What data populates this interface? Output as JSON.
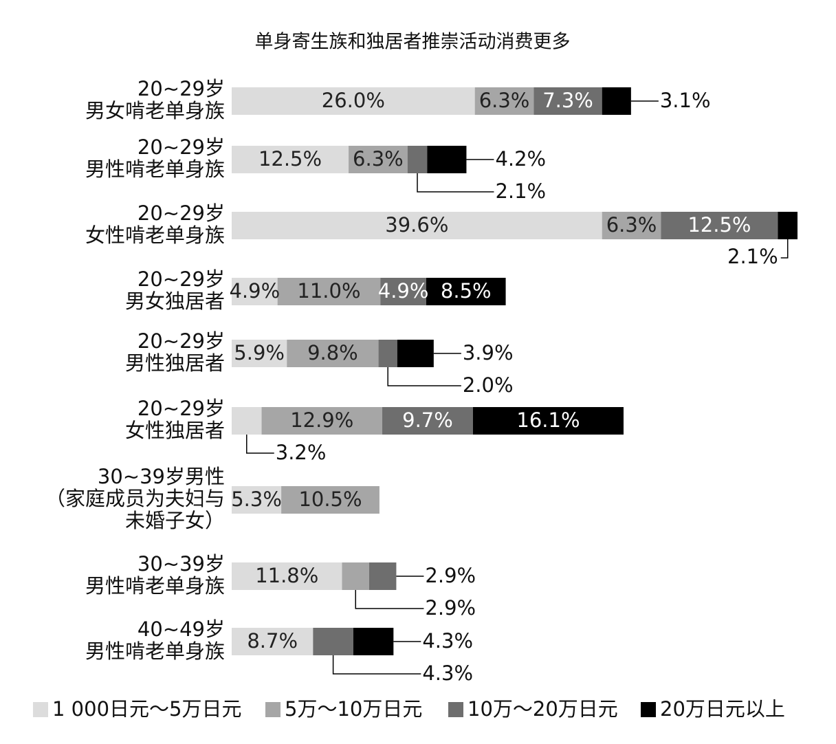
{
  "chart_data": {
    "type": "stacked-bar-horizontal",
    "title": "单身寄生族和独居者推崇活动消费更多",
    "categories": [
      [
        "20~29岁",
        "男女啃老单身族"
      ],
      [
        "20~29岁",
        "男性啃老单身族"
      ],
      [
        "20~29岁",
        "女性啃老单身族"
      ],
      [
        "20~29岁",
        "男女独居者"
      ],
      [
        "20~29岁",
        "男性独居者"
      ],
      [
        "20~29岁",
        "女性独居者"
      ],
      [
        "30~39岁男性",
        "（家庭成员为夫妇与",
        "未婚子女）"
      ],
      [
        "30~39岁",
        "男性啃老单身族"
      ],
      [
        "40~49岁",
        "男性啃老单身族"
      ]
    ],
    "series": [
      {
        "name": "1 000日元～5万日元",
        "color": "#dcdcdc",
        "values": [
          26.0,
          12.5,
          39.6,
          4.9,
          5.9,
          3.2,
          5.3,
          11.8,
          8.7
        ],
        "value_labels": [
          "26.0%",
          "12.5%",
          "39.6%",
          "4.9%",
          "5.9%",
          "3.2%",
          "5.3%",
          "11.8%",
          "8.7%"
        ]
      },
      {
        "name": "5万～10万日元",
        "color": "#a6a6a6",
        "values": [
          6.3,
          6.3,
          6.3,
          11.0,
          9.8,
          12.9,
          10.5,
          2.9,
          null
        ],
        "value_labels": [
          "6.3%",
          "6.3%",
          "6.3%",
          "11.0%",
          "9.8%",
          "12.9%",
          "10.5%",
          "2.9%",
          null
        ]
      },
      {
        "name": "10万～20万日元",
        "color": "#6e6e6e",
        "values": [
          7.3,
          2.1,
          12.5,
          4.9,
          2.0,
          9.7,
          null,
          2.9,
          4.3
        ],
        "value_labels": [
          "7.3%",
          "2.1%",
          "12.5%",
          "4.9%",
          "2.0%",
          "9.7%",
          null,
          "2.9%",
          "4.3%"
        ]
      },
      {
        "name": "20万日元以上",
        "color": "#000000",
        "values": [
          3.1,
          4.2,
          2.1,
          8.5,
          3.9,
          16.1,
          null,
          null,
          4.3
        ],
        "value_labels": [
          "3.1%",
          "4.2%",
          "2.1%",
          "8.5%",
          "3.9%",
          "16.1%",
          null,
          null,
          "4.3%"
        ]
      }
    ]
  }
}
